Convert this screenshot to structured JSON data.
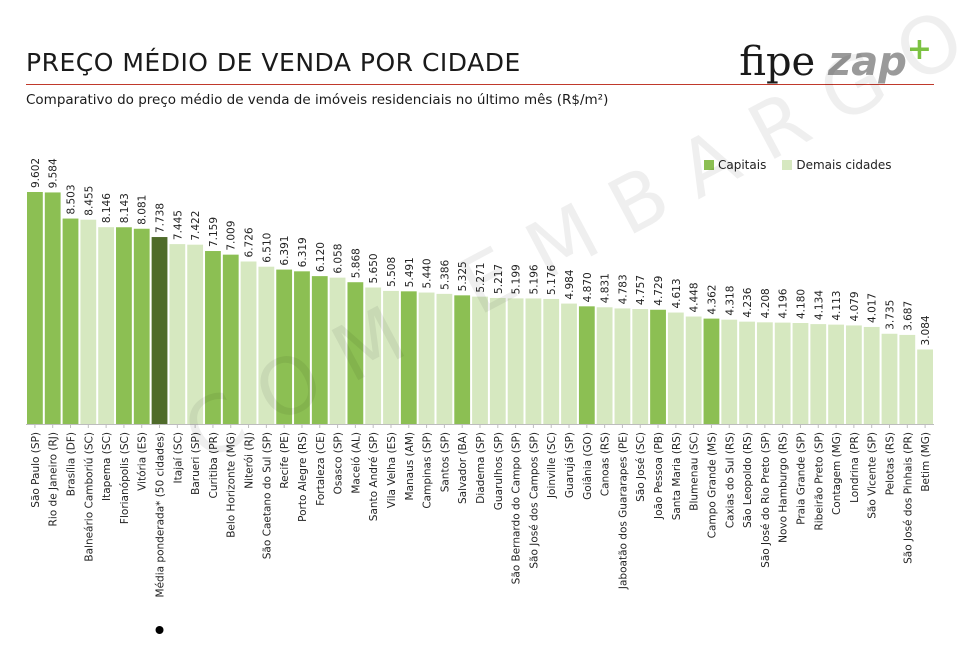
{
  "header": {
    "title": "PREÇO MÉDIO DE VENDA POR CIDADE",
    "subtitle": "Comparativo do preço médio de venda de imóveis residenciais no último mês (R$/m²)",
    "logo_fipe": "fipe",
    "logo_zap": "zap",
    "logo_plus": "+"
  },
  "watermark": "COM EMBARGO",
  "legend": {
    "items": [
      {
        "label": "Capitais",
        "color": "#8cbf53"
      },
      {
        "label": "Demais cidades",
        "color": "#d6e8c0"
      }
    ],
    "position": "top-right"
  },
  "colors": {
    "capital": "#8cbf53",
    "other": "#d6e8c0",
    "average": "#4f6b2a",
    "rule": "#c0392b"
  },
  "chart_data": {
    "type": "bar",
    "title": "PREÇO MÉDIO DE VENDA POR CIDADE",
    "ylabel": "",
    "xlabel": "",
    "ylim": [
      0,
      10000
    ],
    "grid": false,
    "categories": [
      "São Paulo (SP)",
      "Rio de Janeiro (RJ)",
      "Brasília (DF)",
      "Balneário Camboriú (SC)",
      "Itapema (SC)",
      "Florianópolis (SC)",
      "Vitória (ES)",
      "Média ponderada* (50 cidades)",
      "Itajaí (SC)",
      "Barueri (SP)",
      "Curitiba (PR)",
      "Belo Horizonte (MG)",
      "Niterói (RJ)",
      "São Caetano do Sul (SP)",
      "Recife (PE)",
      "Porto Alegre (RS)",
      "Fortaleza (CE)",
      "Osasco (SP)",
      "Maceió (AL)",
      "Santo André (SP)",
      "Vila Velha (ES)",
      "Manaus (AM)",
      "Campinas (SP)",
      "Santos (SP)",
      "Salvador (BA)",
      "Diadema (SP)",
      "Guarulhos (SP)",
      "São Bernardo do Campo (SP)",
      "São José dos Campos (SP)",
      "Joinville (SC)",
      "Guarujá (SP)",
      "Goiânia (GO)",
      "Canoas (RS)",
      "Jaboatão dos Guararapes (PE)",
      "São José (SC)",
      "João Pessoa (PB)",
      "Santa Maria (RS)",
      "Blumenau (SC)",
      "Campo Grande (MS)",
      "Caxias do Sul (RS)",
      "São Leopoldo (RS)",
      "São José do Rio Preto (SP)",
      "Novo Hamburgo (RS)",
      "Praia Grande (SP)",
      "Ribeirão Preto (SP)",
      "Contagem (MG)",
      "Londrina (PR)",
      "São Vicente (SP)",
      "Pelotas (RS)",
      "São José dos Pinhais (PR)",
      "Betim (MG)"
    ],
    "values": [
      9602,
      9584,
      8503,
      8455,
      8146,
      8143,
      8081,
      7738,
      7445,
      7422,
      7159,
      7009,
      6726,
      6510,
      6391,
      6319,
      6120,
      6058,
      5868,
      5650,
      5508,
      5491,
      5440,
      5386,
      5325,
      5271,
      5217,
      5199,
      5196,
      5176,
      4984,
      4870,
      4831,
      4783,
      4757,
      4729,
      4613,
      4448,
      4362,
      4318,
      4236,
      4208,
      4196,
      4180,
      4134,
      4113,
      4079,
      4017,
      3735,
      3687,
      3084
    ],
    "value_labels": [
      "9.602",
      "9.584",
      "8.503",
      "8.455",
      "8.146",
      "8.143",
      "8.081",
      "7.738",
      "7.445",
      "7.422",
      "7.159",
      "7.009",
      "6.726",
      "6.510",
      "6.391",
      "6.319",
      "6.120",
      "6.058",
      "5.868",
      "5.650",
      "5.508",
      "5.491",
      "5.440",
      "5.386",
      "5.325",
      "5.271",
      "5.217",
      "5.199",
      "5.196",
      "5.176",
      "4.984",
      "4.870",
      "4.831",
      "4.783",
      "4.757",
      "4.729",
      "4.613",
      "4.448",
      "4.362",
      "4.318",
      "4.236",
      "4.208",
      "4.196",
      "4.180",
      "4.134",
      "4.113",
      "4.079",
      "4.017",
      "3.735",
      "3.687",
      "3.084"
    ],
    "group": [
      "capital",
      "capital",
      "capital",
      "other",
      "other",
      "capital",
      "capital",
      "average",
      "other",
      "other",
      "capital",
      "capital",
      "other",
      "other",
      "capital",
      "capital",
      "capital",
      "other",
      "capital",
      "other",
      "other",
      "capital",
      "other",
      "other",
      "capital",
      "other",
      "other",
      "other",
      "other",
      "other",
      "other",
      "capital",
      "other",
      "other",
      "other",
      "capital",
      "other",
      "other",
      "capital",
      "other",
      "other",
      "other",
      "other",
      "other",
      "other",
      "other",
      "other",
      "other",
      "other",
      "other",
      "other"
    ]
  }
}
